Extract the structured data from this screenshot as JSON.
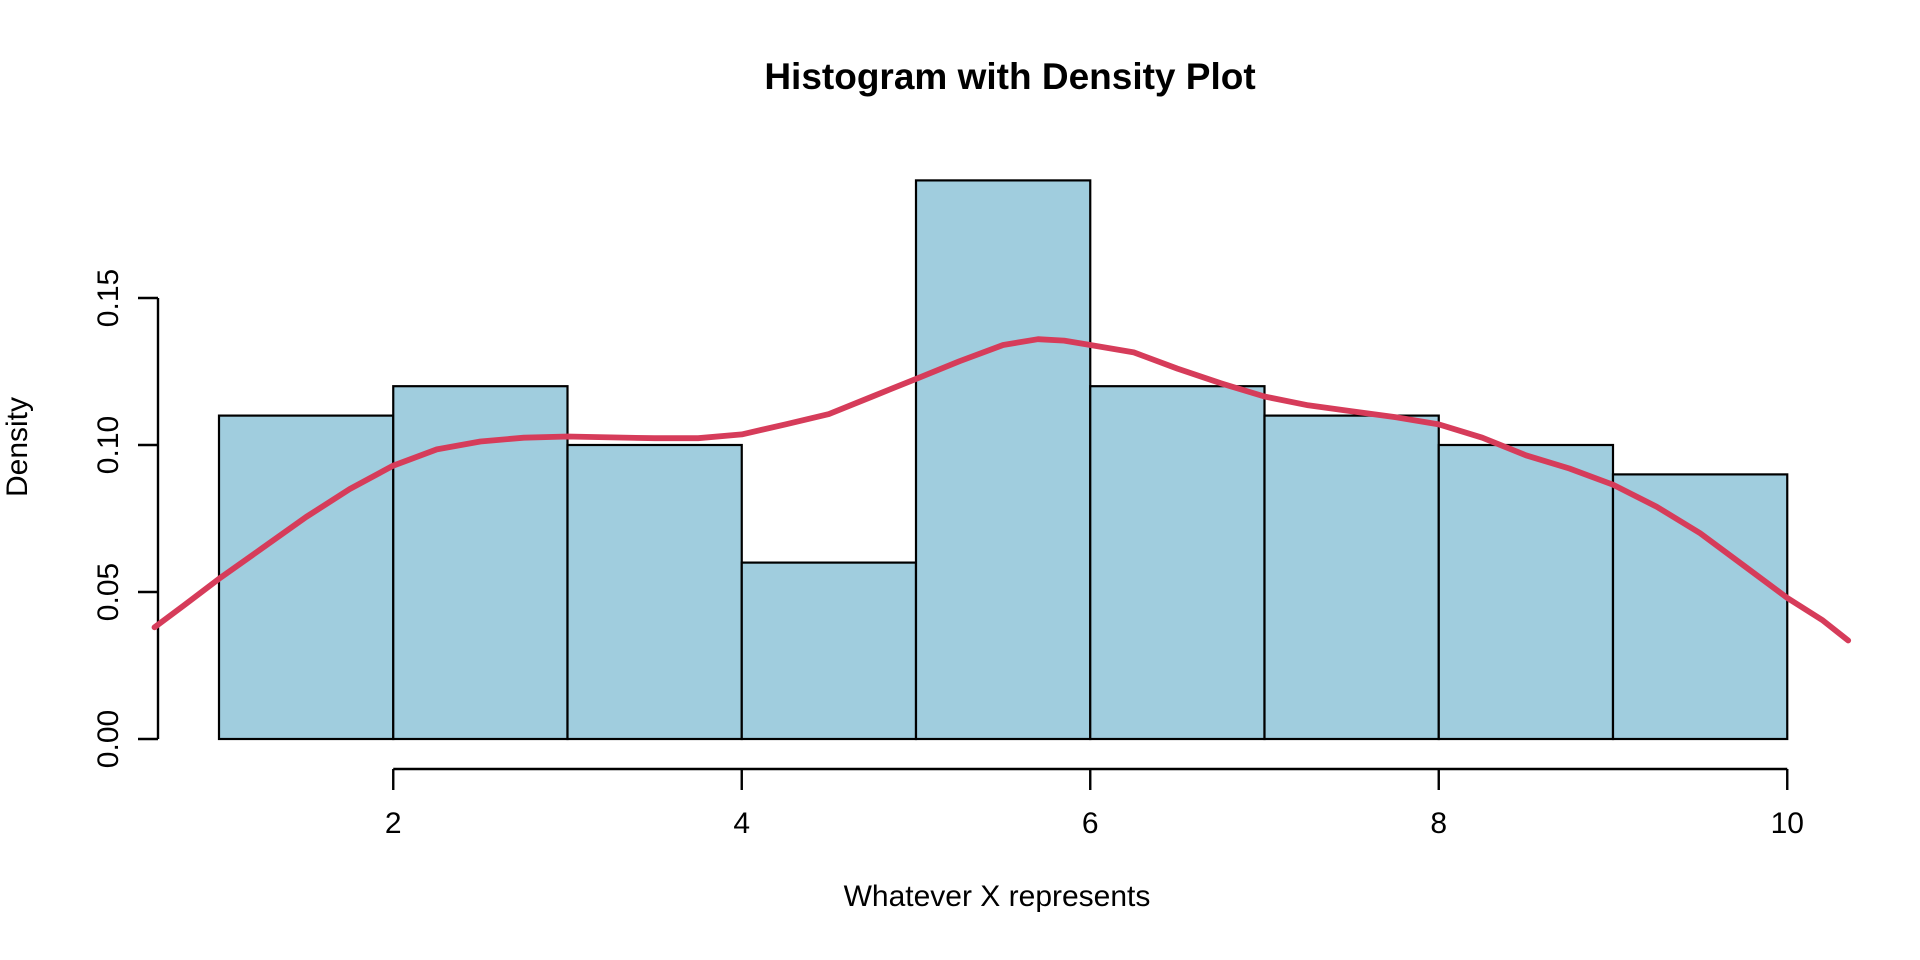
{
  "chart_data": {
    "type": "histogram_with_density",
    "title": "Histogram with Density Plot",
    "xlabel": "Whatever X represents",
    "ylabel": "Density",
    "x_ticks": [
      "2",
      "4",
      "6",
      "8",
      "10"
    ],
    "x_tick_values": [
      2,
      4,
      6,
      8,
      10
    ],
    "y_ticks": [
      "0.00",
      "0.05",
      "0.10",
      "0.15"
    ],
    "y_tick_values": [
      0,
      0.05,
      0.1,
      0.15
    ],
    "xlim": [
      0.63,
      10.45
    ],
    "ylim": [
      0,
      0.1976
    ],
    "grid": false,
    "legend": null,
    "bin_edges": [
      1,
      2,
      3,
      4,
      5,
      6,
      7,
      8,
      9,
      10
    ],
    "bar_densities": [
      0.11,
      0.12,
      0.1,
      0.06,
      0.19,
      0.12,
      0.11,
      0.1,
      0.09
    ],
    "density_curve": [
      [
        0.63,
        0.038
      ],
      [
        0.8,
        0.0455
      ],
      [
        1.0,
        0.0545
      ],
      [
        1.25,
        0.065
      ],
      [
        1.5,
        0.0755
      ],
      [
        1.75,
        0.085
      ],
      [
        2.0,
        0.093
      ],
      [
        2.25,
        0.0985
      ],
      [
        2.5,
        0.1012
      ],
      [
        2.75,
        0.1025
      ],
      [
        3.0,
        0.1029
      ],
      [
        3.25,
        0.1026
      ],
      [
        3.5,
        0.1023
      ],
      [
        3.75,
        0.1023
      ],
      [
        4.0,
        0.1036
      ],
      [
        4.25,
        0.107
      ],
      [
        4.5,
        0.1105
      ],
      [
        4.75,
        0.1165
      ],
      [
        5.0,
        0.1225
      ],
      [
        5.25,
        0.1285
      ],
      [
        5.5,
        0.134
      ],
      [
        5.7,
        0.136
      ],
      [
        5.85,
        0.1355
      ],
      [
        6.0,
        0.134
      ],
      [
        6.25,
        0.1315
      ],
      [
        6.5,
        0.126
      ],
      [
        6.75,
        0.121
      ],
      [
        7.0,
        0.1165
      ],
      [
        7.25,
        0.1135
      ],
      [
        7.5,
        0.1115
      ],
      [
        7.75,
        0.1095
      ],
      [
        8.0,
        0.107
      ],
      [
        8.25,
        0.1025
      ],
      [
        8.5,
        0.0965
      ],
      [
        8.75,
        0.092
      ],
      [
        9.0,
        0.0865
      ],
      [
        9.25,
        0.079
      ],
      [
        9.5,
        0.07
      ],
      [
        9.75,
        0.059
      ],
      [
        10.0,
        0.048
      ],
      [
        10.2,
        0.0405
      ],
      [
        10.35,
        0.0335
      ]
    ],
    "colors": {
      "bar_fill": "#a0cdde",
      "bar_stroke": "#000000",
      "curve": "#d63c5a",
      "axis": "#000000",
      "text": "#000000",
      "background": "#ffffff"
    }
  }
}
